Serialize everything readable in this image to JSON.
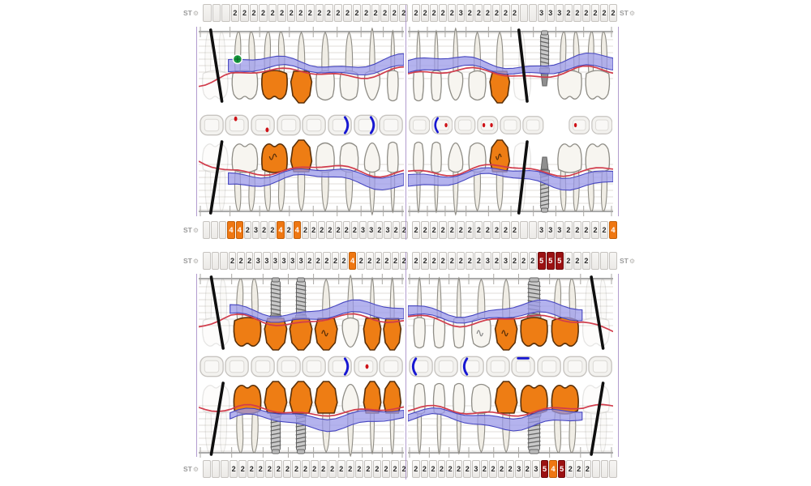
{
  "labels": {
    "st": "ST",
    "gear_icon": "⚙"
  },
  "colors": {
    "cell_border": "#c6c3bf",
    "cell_text": "#2b2b2b",
    "highlight_orange": "#ef7712",
    "highlight_dark_red": "#9b1112",
    "tooth_fill": "#f7f5f0",
    "tooth_stroke": "#8f8d86",
    "root_fill": "#f0ede5",
    "crown_orange": "#ee7d14",
    "crown_stroke": "#5a3009",
    "band_fill": "#9b9ae8",
    "band_edge": "#4646c0",
    "gingival_line": "#d13c4c",
    "implant_fill": "#c9c9c9",
    "implant_stroke": "#636363",
    "missing_slash": "#0f0f0f",
    "green_marker": "#17983d",
    "occ_red": "#ce1117",
    "occ_blue": "#1717d2",
    "grid_line": "#e0deda",
    "base_line": "#555555",
    "divider_purple": "#a58bc6",
    "label_gray": "#9a9a9a"
  },
  "st_rows": [
    {
      "id": "st-upper-buccal",
      "right_label": true,
      "left": [
        "",
        "",
        "",
        "2",
        "2",
        "2",
        "2",
        "2",
        "2",
        "2",
        "2",
        "2",
        "2",
        "2",
        "2",
        "2",
        "2",
        "2",
        "2",
        "2",
        "2",
        "2"
      ],
      "right": [
        "2",
        "2",
        "2",
        "2",
        "2",
        "3",
        "2",
        "2",
        "2",
        "2",
        "2",
        "2",
        "",
        "",
        "3",
        "3",
        "3",
        "2",
        "2",
        "2",
        "2",
        "2",
        "2"
      ]
    },
    {
      "id": "st-upper-palatal",
      "right_label": false,
      "left": [
        "",
        "",
        "",
        "4o",
        "4o",
        "2",
        "3",
        "2",
        "2",
        "4o",
        "2",
        "4o",
        "2",
        "2",
        "2",
        "2",
        "2",
        "2",
        "2",
        "3",
        "3",
        "2",
        "3",
        "2",
        "2"
      ],
      "right": [
        "2",
        "2",
        "2",
        "2",
        "2",
        "2",
        "2",
        "2",
        "2",
        "2",
        "2",
        "2",
        "",
        "",
        "3",
        "3",
        "3",
        "2",
        "2",
        "2",
        "2",
        "2",
        "4o"
      ]
    },
    {
      "id": "st-lower-lingual",
      "right_label": true,
      "left": [
        "",
        "",
        "",
        "2",
        "2",
        "2",
        "3",
        "3",
        "3",
        "3",
        "3",
        "3",
        "2",
        "2",
        "2",
        "2",
        "2",
        "4o",
        "2",
        "2",
        "2",
        "2",
        "2",
        "2"
      ],
      "right": [
        "2",
        "2",
        "2",
        "2",
        "2",
        "2",
        "2",
        "2",
        "3",
        "2",
        "3",
        "2",
        "2",
        "2",
        "5r",
        "5r",
        "5r",
        "2",
        "2",
        "2",
        "",
        "",
        ""
      ]
    },
    {
      "id": "st-lower-buccal",
      "right_label": false,
      "left": [
        "",
        "",
        "",
        "2",
        "2",
        "2",
        "2",
        "2",
        "2",
        "2",
        "2",
        "2",
        "2",
        "2",
        "2",
        "2",
        "2",
        "2",
        "2",
        "2",
        "2",
        "2",
        "2"
      ],
      "right": [
        "2",
        "2",
        "2",
        "2",
        "2",
        "2",
        "2",
        "3",
        "2",
        "2",
        "2",
        "2",
        "3",
        "2",
        "3",
        "5r",
        "4o",
        "5r",
        "2",
        "2",
        "2",
        "",
        "",
        ""
      ]
    }
  ],
  "teeth_rows": [
    {
      "id": "upper-buccal",
      "flip": false,
      "seed": 0.8,
      "left": [
        {
          "t": "molar",
          "s": "missing"
        },
        {
          "t": "molar",
          "s": "normal",
          "m": [
            "green-dot"
          ]
        },
        {
          "t": "molar",
          "s": "crown"
        },
        {
          "t": "premolar",
          "s": "crown"
        },
        {
          "t": "premolar",
          "s": "normal"
        },
        {
          "t": "premolar",
          "s": "normal"
        },
        {
          "t": "canine",
          "s": "normal"
        },
        {
          "t": "incisor",
          "s": "normal"
        }
      ],
      "right": [
        {
          "t": "incisor",
          "s": "normal"
        },
        {
          "t": "incisor",
          "s": "normal"
        },
        {
          "t": "canine",
          "s": "normal"
        },
        {
          "t": "premolar",
          "s": "normal"
        },
        {
          "t": "premolar",
          "s": "crown"
        },
        {
          "t": "premolar",
          "s": "missing"
        },
        {
          "t": "premolar",
          "s": "implant"
        },
        {
          "t": "molar",
          "s": "normal"
        },
        {
          "t": "molar",
          "s": "normal"
        }
      ]
    },
    {
      "id": "upper-palatal",
      "flip": true,
      "seed": 2.1,
      "left": [
        {
          "t": "molar",
          "s": "missing"
        },
        {
          "t": "molar",
          "s": "normal"
        },
        {
          "t": "molar",
          "s": "crown",
          "m": [
            "squiggle"
          ]
        },
        {
          "t": "premolar",
          "s": "crown"
        },
        {
          "t": "premolar",
          "s": "normal"
        },
        {
          "t": "premolar",
          "s": "normal"
        },
        {
          "t": "canine",
          "s": "normal"
        },
        {
          "t": "incisor",
          "s": "normal"
        }
      ],
      "right": [
        {
          "t": "incisor",
          "s": "normal"
        },
        {
          "t": "incisor",
          "s": "normal"
        },
        {
          "t": "canine",
          "s": "normal"
        },
        {
          "t": "premolar",
          "s": "normal"
        },
        {
          "t": "premolar",
          "s": "crown",
          "m": [
            "squiggle"
          ]
        },
        {
          "t": "premolar",
          "s": "missing"
        },
        {
          "t": "premolar",
          "s": "implant"
        },
        {
          "t": "molar",
          "s": "normal"
        },
        {
          "t": "molar",
          "s": "normal"
        }
      ]
    },
    {
      "id": "lower-lingual",
      "flip": false,
      "seed": 3.6,
      "left": [
        {
          "t": "molar",
          "s": "missing"
        },
        {
          "t": "molar",
          "s": "crown"
        },
        {
          "t": "premolar",
          "s": "implant-crown"
        },
        {
          "t": "premolar",
          "s": "implant-crown"
        },
        {
          "t": "premolar",
          "s": "crown",
          "m": [
            "squiggle"
          ]
        },
        {
          "t": "canine",
          "s": "normal"
        },
        {
          "t": "incisor",
          "s": "crown"
        },
        {
          "t": "incisor",
          "s": "crown"
        }
      ],
      "right": [
        {
          "t": "incisor",
          "s": "normal"
        },
        {
          "t": "incisor",
          "s": "normal"
        },
        {
          "t": "incisor",
          "s": "normal"
        },
        {
          "t": "premolar",
          "s": "normal",
          "m": [
            "squiggle"
          ]
        },
        {
          "t": "premolar",
          "s": "crown",
          "m": [
            "squiggle"
          ]
        },
        {
          "t": "molar",
          "s": "implant-crown"
        },
        {
          "t": "molar",
          "s": "crown"
        },
        {
          "t": "molar",
          "s": "missing"
        }
      ]
    },
    {
      "id": "lower-buccal",
      "flip": true,
      "seed": 5.2,
      "left": [
        {
          "t": "molar",
          "s": "missing"
        },
        {
          "t": "molar",
          "s": "crown"
        },
        {
          "t": "premolar",
          "s": "implant-crown"
        },
        {
          "t": "premolar",
          "s": "implant-crown"
        },
        {
          "t": "premolar",
          "s": "crown"
        },
        {
          "t": "canine",
          "s": "normal"
        },
        {
          "t": "incisor",
          "s": "crown"
        },
        {
          "t": "incisor",
          "s": "crown"
        }
      ],
      "right": [
        {
          "t": "incisor",
          "s": "normal"
        },
        {
          "t": "incisor",
          "s": "normal"
        },
        {
          "t": "incisor",
          "s": "normal"
        },
        {
          "t": "premolar",
          "s": "normal"
        },
        {
          "t": "premolar",
          "s": "crown"
        },
        {
          "t": "molar",
          "s": "implant-crown"
        },
        {
          "t": "molar",
          "s": "crown"
        },
        {
          "t": "molar",
          "s": "missing"
        }
      ]
    }
  ],
  "occlusal_rows": [
    {
      "id": "upper-occlusal",
      "left": [
        {},
        {
          "m": [
            "red-top"
          ]
        },
        {
          "m": [
            "red-br"
          ]
        },
        {},
        {},
        {
          "m": [
            "blue-right"
          ]
        },
        {
          "m": [
            "blue-right"
          ]
        },
        {}
      ],
      "right": [
        {},
        {
          "m": [
            "blue-left",
            "red-right"
          ]
        },
        {},
        {
          "m": [
            "red-left",
            "red-right"
          ]
        },
        {},
        {},
        {
          "gap": true
        },
        {
          "m": [
            "red-left"
          ]
        },
        {}
      ]
    },
    {
      "id": "lower-occlusal",
      "left": [
        {},
        {},
        {},
        {},
        {},
        {
          "m": [
            "blue-right"
          ]
        },
        {
          "m": [
            "red-center"
          ]
        },
        {}
      ],
      "right": [
        {
          "m": [
            "blue-left"
          ]
        },
        {},
        {
          "m": [
            "blue-left"
          ]
        },
        {},
        {
          "m": [
            "blue-top"
          ]
        },
        {},
        {},
        {}
      ]
    }
  ]
}
